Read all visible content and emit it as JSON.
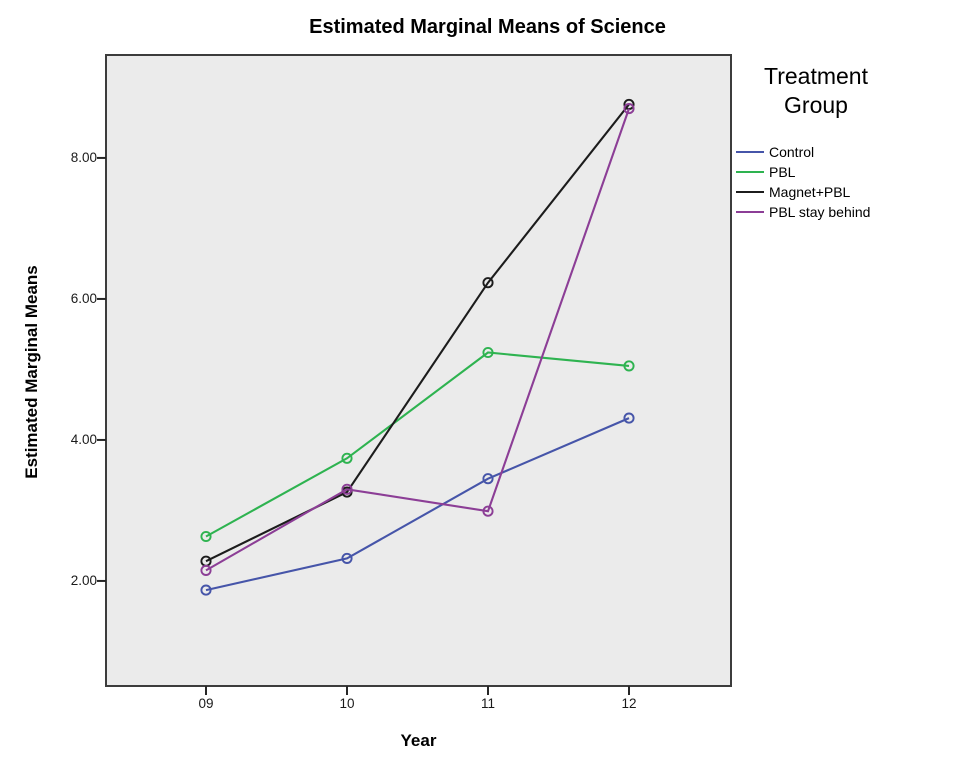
{
  "figure": {
    "title": "Estimated Marginal Means of Science",
    "x_axis": {
      "label": "Year"
    },
    "y_axis": {
      "label": "Estimated Marginal Means"
    },
    "legend": {
      "title": "Treatment Group"
    }
  },
  "chart_data": {
    "type": "line",
    "title": "Estimated Marginal Means of Science",
    "xlabel": "Year",
    "ylabel": "Estimated Marginal Means",
    "categories": [
      "09",
      "10",
      "11",
      "12"
    ],
    "series": [
      {
        "name": "Control",
        "color": "#4655A9",
        "values": [
          1.87,
          2.32,
          3.45,
          4.31
        ]
      },
      {
        "name": "PBL",
        "color": "#2EB350",
        "values": [
          2.63,
          3.74,
          5.24,
          5.05
        ]
      },
      {
        "name": "Magnet+PBL",
        "color": "#1C1C1C",
        "values": [
          2.28,
          3.26,
          6.23,
          8.76
        ]
      },
      {
        "name": "PBL stay behind",
        "color": "#8C3E96",
        "values": [
          2.15,
          3.3,
          2.99,
          8.7
        ]
      }
    ],
    "yticks": [
      2,
      4,
      6,
      8
    ],
    "ytick_labels": [
      "2.00",
      "4.00",
      "6.00",
      "8.00"
    ],
    "ylim": [
      0.51,
      9.46
    ],
    "grid": false,
    "legend_title": "Treatment Group",
    "legend_position": "right",
    "plot_background": "#EBEBEB",
    "frame_color": "#3C3C3C",
    "marker": "open-circle"
  }
}
